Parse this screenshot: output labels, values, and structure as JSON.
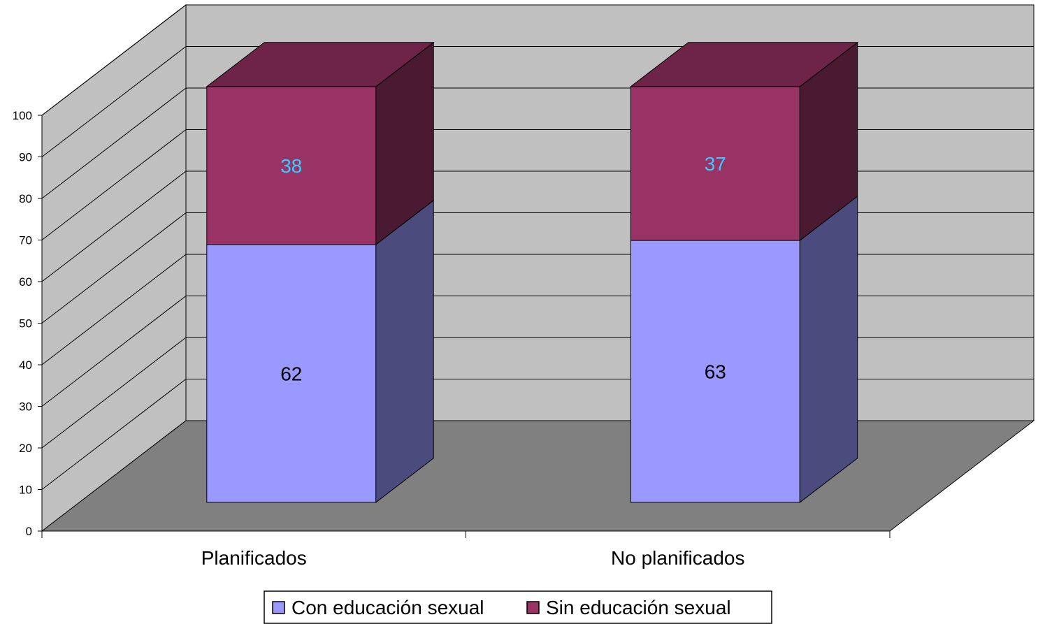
{
  "chart_data": {
    "type": "bar",
    "stacked": true,
    "three_d": true,
    "categories": [
      "Planificados",
      "No planificados"
    ],
    "series": [
      {
        "name": "Con educación sexual",
        "values": [
          62,
          63
        ],
        "color": "#9999FF",
        "side_color": "#4B4B7D",
        "label_color": "#000000"
      },
      {
        "name": "Sin educación sexual",
        "values": [
          38,
          37
        ],
        "color": "#993366",
        "side_color": "#4A1932",
        "top_color": "#6E2348",
        "label_color": "#33CCFF"
      }
    ],
    "ylim": [
      0,
      100
    ],
    "yticks": [
      0,
      10,
      20,
      30,
      40,
      50,
      60,
      70,
      80,
      90,
      100
    ],
    "grid": true,
    "wall_color": "#C0C0C0",
    "floor_color": "#808080",
    "legend_position": "bottom"
  }
}
